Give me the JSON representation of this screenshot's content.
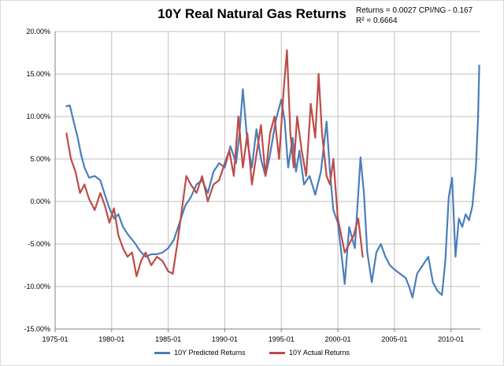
{
  "chart_data": {
    "type": "line",
    "title": "10Y Real Natural Gas Returns",
    "annotations": [
      "Returns = 0.0027  CPI/NG - 0.167",
      "R² = 0.6664"
    ],
    "xlabel": "",
    "ylabel": "",
    "xlim": [
      "1975-01",
      "2012-06"
    ],
    "ylim": [
      -0.15,
      0.2
    ],
    "grid": true,
    "legend_position": "bottom",
    "y_tick_labels": [
      "20.00%",
      "15.00%",
      "10.00%",
      "5.00%",
      "0.00%",
      "-5.00%",
      "-10.00%",
      "-15.00%"
    ],
    "y_tick_values": [
      0.2,
      0.15,
      0.1,
      0.05,
      0.0,
      -0.05,
      -0.1,
      -0.15
    ],
    "x_tick_labels": [
      "1975-01",
      "1980-01",
      "1985-01",
      "1990-01",
      "1995-01",
      "2000-01",
      "2005-01",
      "2010-01"
    ],
    "x_tick_values": [
      1975.0,
      1980.0,
      1985.0,
      1990.0,
      1995.0,
      2000.0,
      2005.0,
      2010.0
    ],
    "series": [
      {
        "name": "10Y Predicted Returns",
        "color": "#4a7ebb",
        "x": [
          1976.0,
          1976.3,
          1976.6,
          1977.0,
          1977.3,
          1977.6,
          1978.0,
          1978.5,
          1979.0,
          1979.4,
          1979.8,
          1980.2,
          1980.6,
          1981.0,
          1981.5,
          1982.0,
          1982.5,
          1983.0,
          1983.5,
          1984.0,
          1984.5,
          1985.0,
          1985.5,
          1986.0,
          1986.5,
          1987.0,
          1987.5,
          1988.0,
          1988.5,
          1989.0,
          1989.5,
          1990.0,
          1990.5,
          1991.0,
          1991.3,
          1991.6,
          1992.0,
          1992.4,
          1992.8,
          1993.2,
          1993.6,
          1994.0,
          1994.5,
          1995.0,
          1995.3,
          1995.6,
          1996.0,
          1996.3,
          1996.6,
          1997.0,
          1997.5,
          1998.0,
          1998.5,
          1999.0,
          1999.3,
          1999.6,
          2000.0,
          2000.3,
          2000.6,
          2001.0,
          2001.5,
          2002.0,
          2002.3,
          2002.6,
          2003.0,
          2003.4,
          2003.8,
          2004.2,
          2004.6,
          2005.0,
          2005.5,
          2006.0,
          2006.3,
          2006.6,
          2007.0,
          2007.5,
          2008.0,
          2008.4,
          2008.8,
          2009.2,
          2009.5,
          2009.8,
          2010.1,
          2010.4,
          2010.7,
          2011.0,
          2011.3,
          2011.6,
          2011.9,
          2012.2,
          2012.4,
          2012.5
        ],
        "values": [
          0.112,
          0.113,
          0.096,
          0.075,
          0.055,
          0.04,
          0.028,
          0.03,
          0.025,
          0.008,
          -0.008,
          -0.02,
          -0.015,
          -0.03,
          -0.04,
          -0.048,
          -0.058,
          -0.065,
          -0.062,
          -0.062,
          -0.06,
          -0.055,
          -0.045,
          -0.025,
          -0.005,
          0.005,
          0.02,
          0.025,
          0.01,
          0.035,
          0.045,
          0.04,
          0.065,
          0.045,
          0.08,
          0.132,
          0.07,
          0.04,
          0.085,
          0.05,
          0.03,
          0.055,
          0.095,
          0.12,
          0.095,
          0.04,
          0.075,
          0.035,
          0.06,
          0.02,
          0.03,
          0.008,
          0.035,
          0.094,
          0.035,
          -0.01,
          -0.025,
          -0.06,
          -0.097,
          -0.03,
          -0.055,
          0.052,
          0.01,
          -0.06,
          -0.095,
          -0.06,
          -0.05,
          -0.065,
          -0.075,
          -0.08,
          -0.085,
          -0.09,
          -0.1,
          -0.113,
          -0.085,
          -0.075,
          -0.065,
          -0.095,
          -0.105,
          -0.11,
          -0.07,
          0.005,
          0.028,
          -0.065,
          -0.02,
          -0.03,
          -0.015,
          -0.022,
          -0.005,
          0.04,
          0.1,
          0.16
        ]
      },
      {
        "name": "10Y Actual Returns",
        "color": "#be4b48",
        "x": [
          1976.0,
          1976.4,
          1976.8,
          1977.2,
          1977.6,
          1978.0,
          1978.5,
          1979.0,
          1979.4,
          1979.8,
          1980.2,
          1980.6,
          1981.0,
          1981.4,
          1981.8,
          1982.2,
          1982.6,
          1983.0,
          1983.5,
          1984.0,
          1984.5,
          1985.0,
          1985.4,
          1985.8,
          1986.2,
          1986.6,
          1987.0,
          1987.5,
          1988.0,
          1988.5,
          1989.0,
          1989.5,
          1990.0,
          1990.4,
          1990.8,
          1991.2,
          1991.6,
          1992.0,
          1992.4,
          1992.8,
          1993.2,
          1993.6,
          1994.0,
          1994.4,
          1994.8,
          1995.2,
          1995.5,
          1995.8,
          1996.1,
          1996.4,
          1996.8,
          1997.2,
          1997.6,
          1998.0,
          1998.3,
          1998.6,
          1999.0,
          1999.3,
          1999.6,
          2000.0,
          2000.3,
          2000.6,
          2001.0,
          2001.4,
          2001.8,
          2002.2
        ],
        "values": [
          0.08,
          0.05,
          0.035,
          0.01,
          0.02,
          0.003,
          -0.01,
          0.01,
          -0.005,
          -0.025,
          -0.008,
          -0.04,
          -0.055,
          -0.065,
          -0.06,
          -0.088,
          -0.07,
          -0.06,
          -0.075,
          -0.065,
          -0.07,
          -0.082,
          -0.085,
          -0.05,
          -0.01,
          0.03,
          0.02,
          0.01,
          0.03,
          0.0,
          0.02,
          0.025,
          0.045,
          0.06,
          0.03,
          0.1,
          0.04,
          0.08,
          0.02,
          0.055,
          0.09,
          0.03,
          0.08,
          0.1,
          0.05,
          0.13,
          0.178,
          0.08,
          0.04,
          0.1,
          0.06,
          0.03,
          0.115,
          0.075,
          0.15,
          0.08,
          0.03,
          0.02,
          0.05,
          -0.02,
          -0.04,
          -0.06,
          -0.05,
          -0.04,
          -0.02,
          -0.065
        ]
      }
    ]
  }
}
